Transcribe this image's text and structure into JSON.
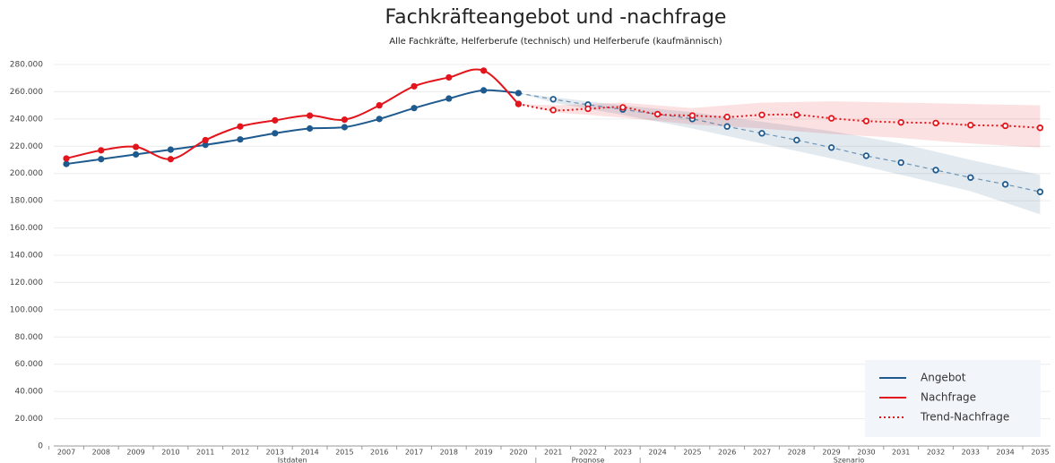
{
  "chart_data": {
    "type": "line",
    "title": "Fachkräfteangebot und -nachfrage",
    "subtitle": "Alle Fachkräfte, Helferberufe (technisch) und Helferberufe (kaufmännisch)",
    "categories": [
      "2007",
      "2008",
      "2009",
      "2010",
      "2011",
      "2012",
      "2013",
      "2014",
      "2015",
      "2016",
      "2017",
      "2018",
      "2019",
      "2020",
      "2021",
      "2022",
      "2023",
      "2024",
      "2025",
      "2026",
      "2027",
      "2028",
      "2029",
      "2030",
      "2031",
      "2032",
      "2033",
      "2034",
      "2035"
    ],
    "sections": [
      {
        "label": "Istdaten",
        "from": "2007",
        "to": "2020"
      },
      {
        "label": "Prognose",
        "from": "2021",
        "to": "2023"
      },
      {
        "label": "Szenario",
        "from": "2024",
        "to": "2035"
      }
    ],
    "series": [
      {
        "name": "Angebot",
        "color": "#1f5a8e",
        "line_style": "solid",
        "values": [
          207000,
          210500,
          214000,
          217500,
          221000,
          225000,
          229500,
          233000,
          234000,
          240000,
          248000,
          255000,
          261000,
          259000,
          254500,
          250500,
          247000,
          243500,
          240000,
          234500,
          229500,
          224500,
          219000,
          213000,
          208000,
          202500,
          197000,
          192000,
          186500
        ],
        "lower": [
          null,
          null,
          null,
          null,
          null,
          null,
          null,
          null,
          null,
          null,
          null,
          null,
          null,
          259000,
          252000,
          247500,
          243000,
          238000,
          233000,
          227500,
          222000,
          216500,
          211000,
          205000,
          199000,
          193000,
          187000,
          178500,
          170000
        ],
        "upper": [
          null,
          null,
          null,
          null,
          null,
          null,
          null,
          null,
          null,
          null,
          null,
          null,
          null,
          259000,
          256000,
          253000,
          250000,
          247500,
          245000,
          241500,
          238000,
          234500,
          231000,
          226500,
          222000,
          216000,
          210000,
          204500,
          199000
        ]
      },
      {
        "name": "Nachfrage",
        "color": "#e3141b",
        "line_style": "solid",
        "values": [
          211000,
          217000,
          219500,
          210500,
          224500,
          234500,
          239000,
          242500,
          239500,
          250000,
          264000,
          270500,
          275500,
          251000,
          null,
          null,
          null,
          null,
          null,
          null,
          null,
          null,
          null,
          null,
          null,
          null,
          null,
          null,
          null
        ]
      },
      {
        "name": "Trend-Nachfrage",
        "color": "#e3141b",
        "line_style": "dotted",
        "values": [
          null,
          null,
          null,
          null,
          null,
          null,
          null,
          null,
          null,
          null,
          null,
          null,
          null,
          251000,
          246500,
          247500,
          248500,
          243500,
          242500,
          241500,
          243000,
          243000,
          240500,
          238500,
          237500,
          237000,
          235500,
          235000,
          233500
        ],
        "lower": [
          null,
          null,
          null,
          null,
          null,
          null,
          null,
          null,
          null,
          null,
          null,
          null,
          null,
          251000,
          245000,
          243000,
          241000,
          238500,
          236000,
          234500,
          233000,
          231000,
          229000,
          227500,
          226000,
          224000,
          222000,
          220500,
          219000
        ],
        "upper": [
          null,
          null,
          null,
          null,
          null,
          null,
          null,
          null,
          null,
          null,
          null,
          null,
          null,
          251000,
          250000,
          251000,
          252000,
          250000,
          248000,
          250000,
          252000,
          252500,
          253000,
          252500,
          252000,
          251500,
          251000,
          250500,
          250000
        ]
      }
    ],
    "ylim": [
      0,
      280000
    ],
    "yticks": [
      0,
      {
        "value": 20000,
        "label": "20.000"
      },
      {
        "value": 40000,
        "label": "40.000"
      },
      {
        "value": 60000,
        "label": "60.000"
      },
      {
        "value": 80000,
        "label": "80.000"
      },
      {
        "value": 100000,
        "label": "100.000"
      },
      {
        "value": 120000,
        "label": "120.000"
      },
      {
        "value": 140000,
        "label": "140.000"
      },
      {
        "value": 160000,
        "label": "160.000"
      },
      {
        "value": 180000,
        "label": "180.000"
      },
      {
        "value": 200000,
        "label": "200.000"
      },
      {
        "value": 220000,
        "label": "220.000"
      },
      {
        "value": 240000,
        "label": "240.000"
      },
      {
        "value": 260000,
        "label": "260.000"
      },
      {
        "value": 280000,
        "label": "280.000"
      }
    ],
    "grid": true,
    "legend": "bottom-right"
  }
}
